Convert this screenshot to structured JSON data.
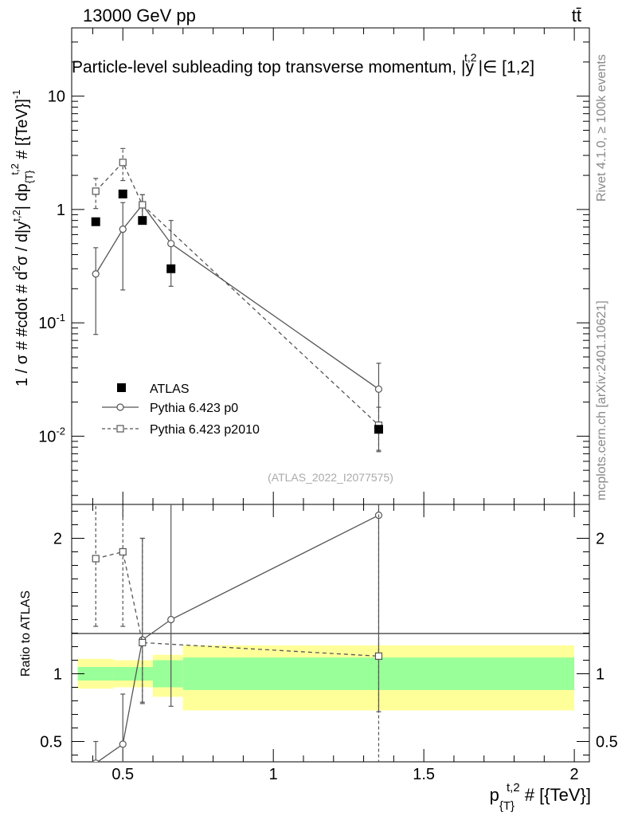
{
  "header": {
    "energy_label": "13000 GeV pp",
    "process_label": "tt̄"
  },
  "side_labels": {
    "rivet": "Rivet 4.1.0, ≥ 100k events",
    "mcplots": "mcplots.cern.ch [arXiv:2401.10621]"
  },
  "chart_data": [
    {
      "type": "scatter",
      "panel": "main",
      "title": "Particle-level subleading top transverse momentum, |y^{t,2}| ∈ [1,2]",
      "title_parts": {
        "base": "Particle-level subleading top transverse momentum, |",
        "var": "y",
        "sup": "t,2",
        "tail": "|∈ [1,2]"
      },
      "ylabel": "1 / σ # #cdot # d²σ / d|y^{t,2}| dp_{T}^{t,2} # [{TeV}]^{-1}",
      "ylabel_parts": {
        "main": "1 / σ # #cdot # d",
        "s1": "2",
        "mid": "σ / d|y",
        "s2": "t,2",
        "mid2": "| dp",
        "sub": "{T}",
        "s3": "t,2",
        "tail": " # [{TeV}]",
        "exp": "-1"
      },
      "yscale": "log",
      "ylim": [
        0.0025,
        40
      ],
      "xlim": [
        0.33,
        2.05
      ],
      "y_ticks": [
        {
          "value": 0.01,
          "base": "10",
          "exp": "-2"
        },
        {
          "value": 0.1,
          "base": "10",
          "exp": "-1"
        },
        {
          "value": 1,
          "base": "1",
          "exp": ""
        },
        {
          "value": 10,
          "base": "10",
          "exp": ""
        }
      ],
      "watermark": "(ATLAS_2022_I2077575)",
      "legend_position": "lower-left",
      "series": [
        {
          "name": "ATLAS",
          "marker": "filled-square",
          "color": "#000000",
          "x": [
            0.41,
            0.5,
            0.565,
            0.66,
            1.35
          ],
          "y": [
            0.78,
            1.37,
            0.8,
            0.3,
            0.0115
          ]
        },
        {
          "name": "Pythia 6.423 p0",
          "marker": "open-circle",
          "line": "solid",
          "color": "#555555",
          "x": [
            0.41,
            0.5,
            0.565,
            0.66,
            1.35
          ],
          "y": [
            0.27,
            0.67,
            1.1,
            0.5,
            0.026
          ],
          "y_err_low": [
            0.079,
            0.195,
            0.85,
            0.21,
            0.0075
          ],
          "y_err_high": [
            0.46,
            1.15,
            1.35,
            0.8,
            0.044
          ]
        },
        {
          "name": "Pythia 6.423 p2010",
          "marker": "open-square",
          "line": "dashed",
          "color": "#555555",
          "x": [
            0.41,
            0.5,
            0.565,
            1.35
          ],
          "y": [
            1.45,
            2.6,
            1.1,
            0.0125
          ],
          "y_err_low": [
            1.02,
            1.8,
            0.85,
            0.0073
          ],
          "y_err_high": [
            1.88,
            3.45,
            1.35,
            0.018
          ]
        }
      ]
    },
    {
      "type": "scatter",
      "panel": "ratio",
      "ylabel": "Ratio to ATLAS",
      "xlabel": "p_{T}^{t,2} # [{TeV}]",
      "xlabel_parts": {
        "main": "p",
        "sub": "{T}",
        "sup": "t,2",
        "tail": " # [{TeV}]"
      },
      "ylim": [
        0.35,
        2.25
      ],
      "xlim": [
        0.33,
        2.05
      ],
      "x_ticks": [
        {
          "value": 0.5,
          "label": "0.5"
        },
        {
          "value": 1,
          "label": "1"
        },
        {
          "value": 1.5,
          "label": "1.5"
        },
        {
          "value": 2,
          "label": "2"
        }
      ],
      "y_ticks": [
        {
          "value": 0.5,
          "label": "0.5"
        },
        {
          "value": 1,
          "label": "1"
        },
        {
          "value": 2,
          "label": "2"
        }
      ],
      "uncertainty_bands": [
        {
          "x": [
            0.35,
            0.47
          ],
          "stat": [
            0.95,
            1.05
          ],
          "total": [
            0.89,
            1.11
          ]
        },
        {
          "x": [
            0.47,
            0.6
          ],
          "stat": [
            0.95,
            1.05
          ],
          "total": [
            0.9,
            1.1
          ]
        },
        {
          "x": [
            0.6,
            0.7
          ],
          "stat": [
            0.9,
            1.1
          ],
          "total": [
            0.83,
            1.14
          ]
        },
        {
          "x": [
            0.7,
            2.0
          ],
          "stat": [
            0.88,
            1.12
          ],
          "total": [
            0.73,
            1.21
          ]
        }
      ],
      "band_colors": {
        "stat": "#99ff99",
        "total": "#ffff99"
      },
      "series": [
        {
          "name": "Pythia 6.423 p0",
          "x": [
            0.41,
            0.5,
            0.565,
            0.66,
            1.35
          ],
          "y": [
            0.34,
            0.48,
            1.25,
            1.4,
            2.17
          ],
          "y_err_low": [
            0.3,
            0.3,
            0.79,
            0.76,
            0.72
          ],
          "y_err_high": [
            0.5,
            0.85,
            2.0,
            2.3,
            3.0
          ]
        },
        {
          "name": "Pythia 6.423 p2010",
          "x": [
            0.41,
            0.5,
            0.565,
            1.35
          ],
          "y": [
            1.85,
            1.9,
            1.23,
            1.13
          ],
          "y_err_low": [
            1.35,
            1.35,
            0.78,
            0.3
          ],
          "y_err_high": [
            2.3,
            2.6,
            2.0,
            3.0
          ]
        }
      ]
    }
  ]
}
